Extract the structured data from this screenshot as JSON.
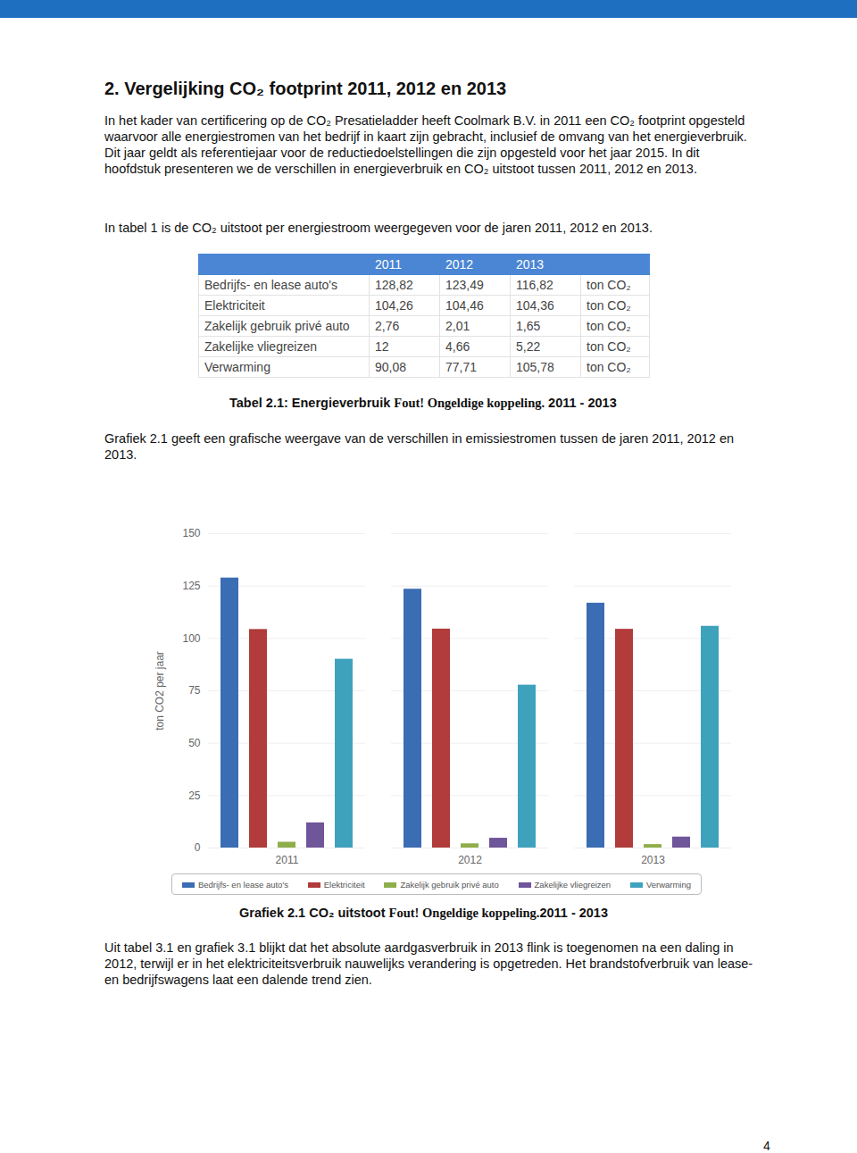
{
  "header": {
    "title": "2. Vergelijking CO₂ footprint 2011, 2012 en 2013"
  },
  "paragraphs": [
    "In het kader van certificering op de CO₂ Presatieladder heeft Coolmark B.V. in 2011 een CO₂ footprint opgesteld waarvoor alle energiestromen van het bedrijf in kaart zijn gebracht, inclusief de omvang van het energieverbruik. Dit jaar geldt als referentiejaar voor de reductiedoelstellingen die zijn opgesteld voor het jaar 2015. In dit hoofdstuk presenteren we de verschillen in energieverbruik en CO₂ uitstoot tussen 2011, 2012 en 2013.",
    "In tabel 1 is de CO₂ uitstoot per energiestroom weergegeven voor de jaren 2011, 2012 en 2013.",
    "Grafiek 2.1 geeft een grafische weergave van de verschillen in emissiestromen tussen de jaren 2011, 2012 en 2013.",
    "Uit tabel 3.1 en grafiek 3.1 blijkt dat het absolute aardgasverbruik in 2013 flink is toegenomen na een daling in 2012, terwijl er in het elektriciteitsverbruik nauwelijks verandering is opgetreden. Het brandstofverbruik van lease- en bedrijfswagens laat een dalende trend zien."
  ],
  "table": {
    "header": [
      "2011",
      "2012",
      "2013"
    ],
    "rows": [
      [
        "Bedrijfs- en lease auto's",
        "128,82",
        "123,49",
        "116,82",
        "ton CO₂"
      ],
      [
        "Elektriciteit",
        "104,26",
        "104,46",
        "104,36",
        "ton CO₂"
      ],
      [
        "Zakelijk gebruik privé auto",
        "2,76",
        "2,01",
        "1,65",
        "ton CO₂"
      ],
      [
        "Zakelijke vliegreizen",
        "12",
        "4,66",
        "5,22",
        "ton CO₂"
      ],
      [
        "Verwarming",
        "90,08",
        "77,71",
        "105,78",
        "ton CO₂"
      ]
    ],
    "caption": [
      "Tabel 2.1: Energieverbruik ",
      "Fout! Ongeldige koppeling.",
      " 2011 - 2013"
    ]
  },
  "chart_data": {
    "type": "bar",
    "ylabel": "ton CO2 per jaar",
    "categories": [
      "2011",
      "2012",
      "2013"
    ],
    "series": [
      {
        "name": "Bedrijfs- en lease auto's",
        "color": "#3a6db3",
        "values": [
          128.82,
          123.49,
          116.82
        ]
      },
      {
        "name": "Elektriciteit",
        "color": "#b23b3b",
        "values": [
          104.26,
          104.46,
          104.36
        ]
      },
      {
        "name": "Zakelijk gebruik privé auto",
        "color": "#8fae4a",
        "values": [
          2.76,
          2.01,
          1.65
        ]
      },
      {
        "name": "Zakelijke vliegreizen",
        "color": "#6f559a",
        "values": [
          12,
          4.66,
          5.22
        ]
      },
      {
        "name": "Verwarming",
        "color": "#3fa2bd",
        "values": [
          90.08,
          77.71,
          105.78
        ]
      }
    ],
    "ylim": [
      0,
      150
    ],
    "yticks": [
      0,
      25,
      50,
      75,
      100,
      125,
      150
    ],
    "grid": true,
    "legend": "bottom",
    "caption": [
      "Grafiek 2.1 CO₂ uitstoot ",
      "Fout! Ongeldige koppeling.",
      "2011 - 2013"
    ]
  },
  "footer": {
    "page_number": "4"
  }
}
